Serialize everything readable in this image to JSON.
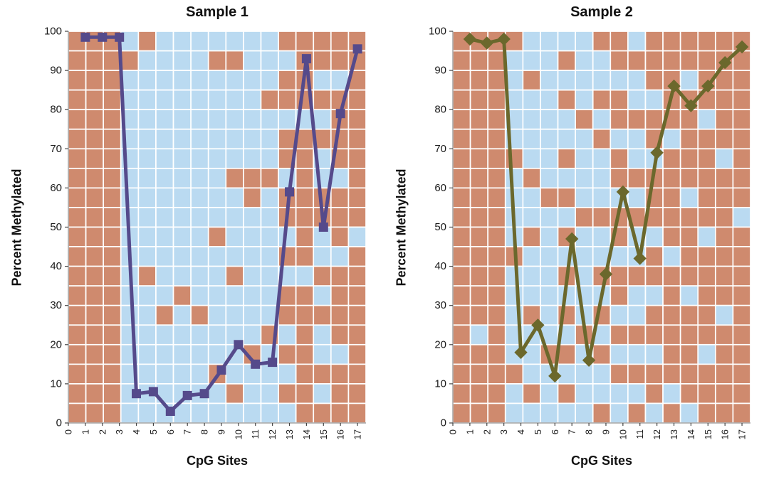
{
  "figure": {
    "background": "#ffffff"
  },
  "colors": {
    "cell_methylated": "#cf8a6e",
    "cell_unmethylated": "#badaf1",
    "grid_line": "#ffffff",
    "axis_text": "#1a1a1a",
    "axis_line": "#777777"
  },
  "chart_data": [
    {
      "type": "line",
      "title": "Sample 1",
      "xlabel": "CpG Sites",
      "ylabel": "Percent Methylated",
      "line_color": "#554a8b",
      "marker": "square",
      "ylim": [
        0,
        100
      ],
      "x": [
        1,
        2,
        3,
        4,
        5,
        6,
        7,
        8,
        9,
        10,
        11,
        12,
        13,
        14,
        15,
        16,
        17
      ],
      "values": [
        98.5,
        98.5,
        98.5,
        7.5,
        8,
        3,
        7,
        7.5,
        13.5,
        20,
        15,
        15.5,
        59,
        93,
        50,
        79,
        95.5
      ],
      "x_tick_labels": [
        "0",
        "1",
        "2",
        "3",
        "4",
        "5",
        "6",
        "7",
        "8",
        "9",
        "10",
        "11",
        "12",
        "13",
        "14",
        "15",
        "16",
        "17"
      ],
      "y_tick_labels": [
        "0",
        "10",
        "20",
        "30",
        "40",
        "50",
        "60",
        "70",
        "80",
        "90",
        "100"
      ],
      "background_grid": {
        "rows": 20,
        "columns": [
          "RRRRRRRRRRRRRRRRRRRR",
          "RRRRRRRRRRRRRRRRRRRR",
          "RRRRRRRRRRRRRRRRRRRR",
          "BRBBBBBBBBBBBBBBBBBB",
          "RBBBBBBBBBBBRBBBBBBB",
          "BBBBBBBBBBBBBBRBBBBB",
          "BBBBBBBBBBBBBRBBBBBB",
          "BBBBBBBBBBBBBBRBBBBB",
          "BRBBBBBBBBRBBBBBBRBB",
          "BRBBBBBRBBBBRBBBBBRB",
          "BBBBBBBRRBBBBBBBRBBB",
          "BBBRBBBRBBBBBBBRBBBB",
          "RBRRBRRBRRBRBRRBRBRB",
          "RRRRBRRRRRRRBRRRRRRR",
          "RRBRBRBBRRBBRBRBBRBR",
          "RRBRRRRBRRRBRRRRBRRR",
          "RRRRRRRRRRBRRRRRRRRR"
        ]
      }
    },
    {
      "type": "line",
      "title": "Sample 2",
      "xlabel": "CpG Sites",
      "ylabel": "Percent Methylated",
      "line_color": "#6b682c",
      "marker": "diamond",
      "ylim": [
        0,
        100
      ],
      "x": [
        1,
        2,
        3,
        4,
        5,
        6,
        7,
        8,
        9,
        10,
        11,
        12,
        13,
        14,
        15,
        16,
        17
      ],
      "values": [
        98,
        97,
        98,
        18,
        25,
        12,
        47,
        16,
        38,
        59,
        42,
        69,
        86,
        81,
        86,
        92,
        96
      ],
      "x_tick_labels": [
        "0",
        "1",
        "2",
        "3",
        "4",
        "5",
        "6",
        "7",
        "8",
        "9",
        "10",
        "11",
        "12",
        "13",
        "14",
        "15",
        "16",
        "17"
      ],
      "y_tick_labels": [
        "0",
        "10",
        "20",
        "30",
        "40",
        "50",
        "60",
        "70",
        "80",
        "90",
        "100"
      ],
      "background_grid": {
        "rows": 20,
        "columns": [
          "RRRRRRRRRRRRRRRRRRRR",
          "RRRRRRRRRRRRRRRBRRRR",
          "RRRRRRRRRRRRRRRRRRRR",
          "RBBBBBRBBBBRBBBBBRBB",
          "BBRBBBBRBBRBBBRBBBRB",
          "BBBBBBBBRBBBBBBBRBBB",
          "BRBRBBRBRBRBRBRBRBRB",
          "BBBBRBBBBRBBBBBRBBBB",
          "RBBRBRBBBRBBRBRBRBBR",
          "RRBRRBRRBRRBRRBRBRBB",
          "BRBBRBBRBRBBRBBRBRBR",
          "RRRBRRBRRRBRRBRRBRRB",
          "RRRRRBRRRRRBRRRRRRBR",
          "RRBRRRRRBRRRRBRRRRRB",
          "RRRRBRRRRRBRRRRRBRRR",
          "RRRRRRBRRRRRRRBRRRRR",
          "RRRRRRRRRBRRRRRRRRRR"
        ]
      }
    }
  ]
}
